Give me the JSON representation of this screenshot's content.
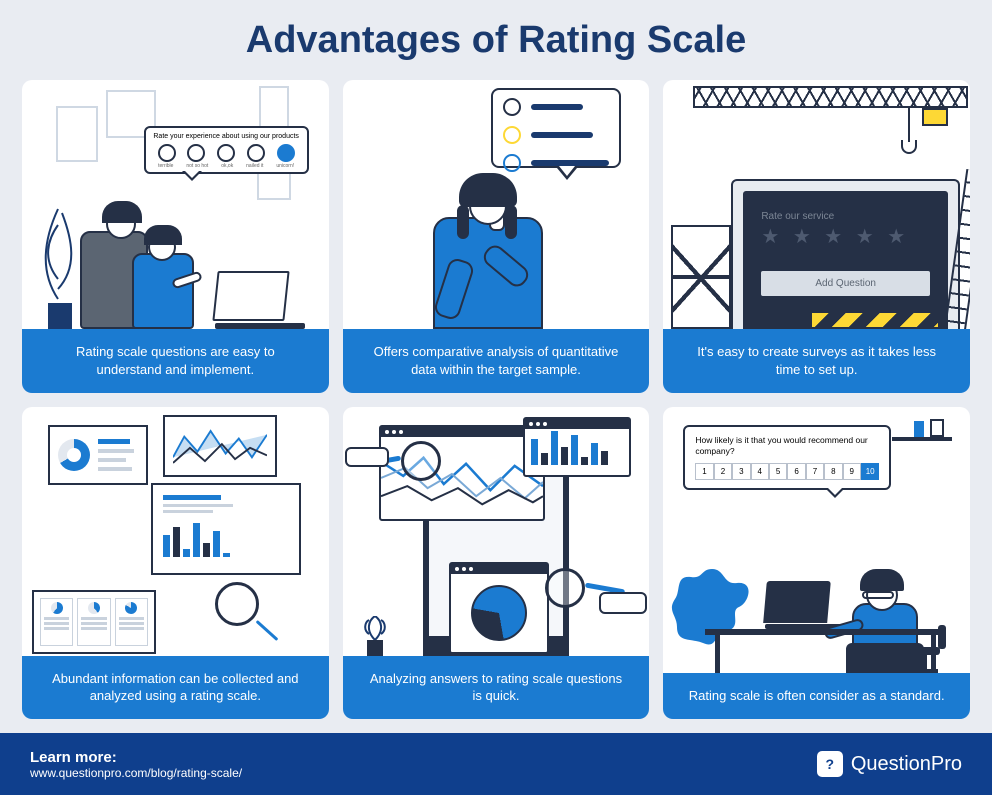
{
  "title": "Advantages of Rating Scale",
  "title_color": "#1a3a6e",
  "title_fontsize": 38,
  "page_background": "#e9ecf2",
  "card_background": "#ffffff",
  "caption_background": "#1b7bd1",
  "caption_text_color": "#ffffff",
  "card_border_radius": 10,
  "grid_gap": 14,
  "outline_color": "#253046",
  "accent_blue": "#1b7bd1",
  "navy": "#1a3a6e",
  "yellow": "#fdd835",
  "grey_panel": "#e8ecf1",
  "cards": [
    {
      "caption": "Rating scale questions are easy to understand and implement.",
      "banner_text": "Rate your experience about using our products",
      "emoji_labels": [
        "terrible",
        "not so hot",
        "ok,ok",
        "nailed it",
        "unicorn!"
      ]
    },
    {
      "caption": "Offers comparative analysis of quantitative data within the target sample.",
      "bubble_face_colors": [
        "#253046",
        "#fdd835",
        "#1b7bd1"
      ],
      "bubble_line_colors": [
        "#1a3a6e",
        "#1a3a6e",
        "#1a3a6e"
      ],
      "bubble_line_widths": [
        52,
        62,
        82
      ]
    },
    {
      "caption": "It's easy to create surveys as it takes less time to set up.",
      "service_label": "Rate our service",
      "add_question_label": "Add Question",
      "star_count": 5
    },
    {
      "caption": "Abundant information can be collected and analyzed using a rating scale.",
      "bar_heights_a": [
        22,
        30,
        8,
        34,
        14,
        26,
        4
      ],
      "bar_heights_b": [
        26,
        12,
        34,
        18,
        30,
        8,
        22,
        14
      ]
    },
    {
      "caption": "Analyzing answers to rating scale questions is quick.",
      "line_series_1_color": "#1b7bd1",
      "line_series_2_color": "#7aa9d6",
      "line_series_3_color": "#253046",
      "pie_split_deg": [
        170,
        280
      ]
    },
    {
      "caption": "Rating scale is often consider as a standard.",
      "nps_question": "How likely is it that you would recommend our company?",
      "nps_values": [
        "1",
        "2",
        "3",
        "4",
        "5",
        "6",
        "7",
        "8",
        "9",
        "10"
      ],
      "nps_selected_index": 9
    }
  ],
  "footer": {
    "background": "#0f3f8d",
    "learn_label": "Learn more:",
    "url": "www.questionpro.com/blog/rating-scale/",
    "brand_badge": "?",
    "brand_name": "QuestionPro"
  }
}
